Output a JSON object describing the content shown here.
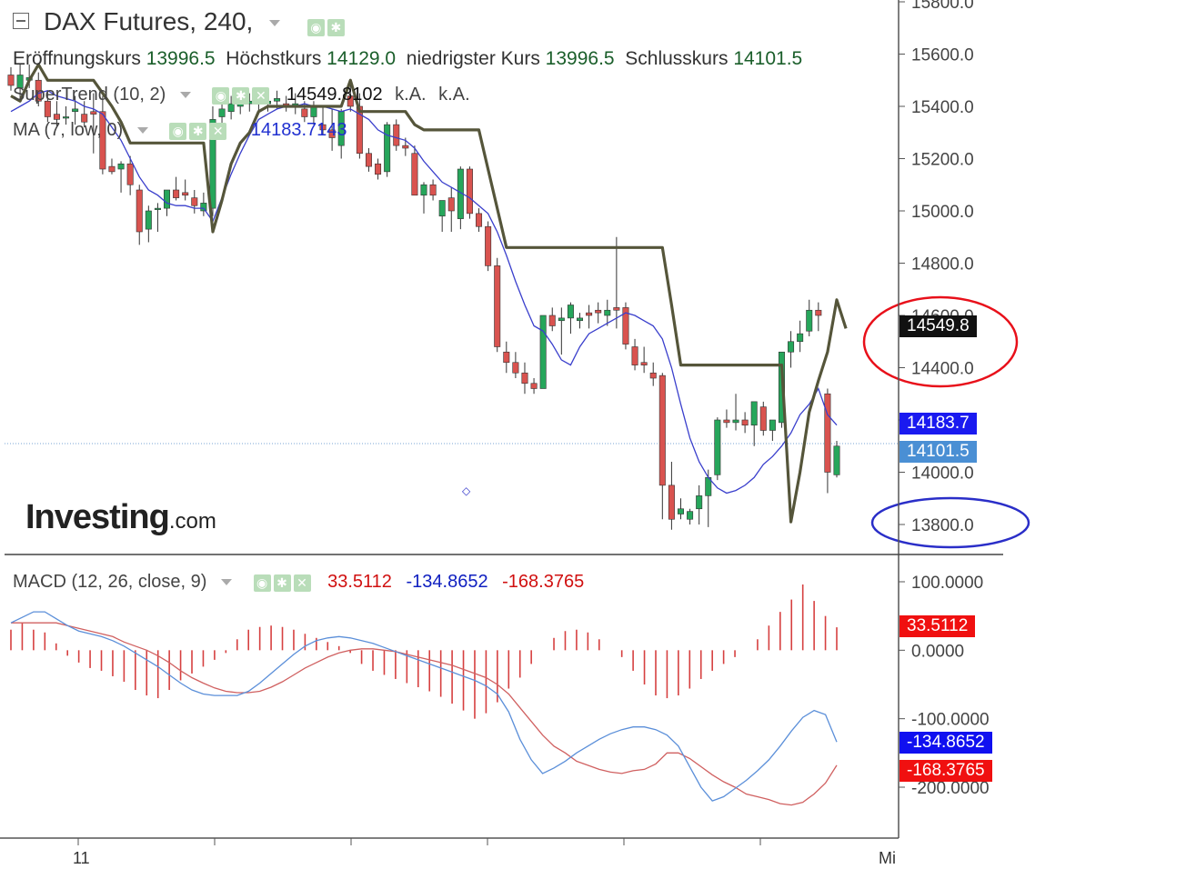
{
  "title": "DAX Futures, 240,",
  "ohlc": {
    "open_label": "Eröffnungskurs",
    "open": "13996.5",
    "high_label": "Höchstkurs",
    "high": "14129.0",
    "low_label": "niedrigster Kurs",
    "low": "13996.5",
    "close_label": "Schlusskurs",
    "close": "14101.5"
  },
  "indicators": {
    "supertrend": {
      "label": "SuperTrend (10, 2)",
      "v1": "14549.8102",
      "v2": "k.A.",
      "v3": "k.A."
    },
    "ma": {
      "label": "MA (7, low, 0)",
      "v1": "14183.7143"
    },
    "macd": {
      "label": "MACD (12, 26, close, 9)",
      "hist": "33.5112",
      "macd": "-134.8652",
      "signal": "-168.3765"
    }
  },
  "logo": {
    "brand": "Investing",
    "suffix": ".com"
  },
  "colors": {
    "up": "#26a65b",
    "down": "#d9534f",
    "supertrend": "#55553a",
    "ma": "#3a3fcc",
    "macd_line": "#5b8fd9",
    "signal_line": "#d06060",
    "hist": "#d64040",
    "circle_red": "#e8101a",
    "circle_blue": "#2a2ec8"
  },
  "chart_data": [
    {
      "type": "candlestick",
      "price_axis": {
        "ticks": [
          "15800.0",
          "15600.0",
          "15400.0",
          "15200.0",
          "15000.0",
          "14800.0",
          "14600.0",
          "14400.0",
          "14200.0",
          "14000.0",
          "13800.0"
        ],
        "range": [
          13800,
          15800
        ]
      },
      "x_ticks": [
        "11",
        "Mi"
      ],
      "price_tags": {
        "supertrend": "14549.8",
        "ma": "14183.7",
        "last": "14101.5"
      },
      "candles": [
        [
          15520,
          15550,
          15460,
          15480
        ],
        [
          15470,
          15560,
          15430,
          15520
        ],
        [
          15500,
          15560,
          15470,
          15510
        ],
        [
          15500,
          15530,
          15400,
          15420
        ],
        [
          15420,
          15460,
          15340,
          15360
        ],
        [
          15370,
          15420,
          15320,
          15350
        ],
        [
          15360,
          15400,
          15330,
          15360
        ],
        [
          15380,
          15440,
          15330,
          15390
        ],
        [
          15370,
          15420,
          15320,
          15340
        ],
        [
          15380,
          15450,
          15220,
          15370
        ],
        [
          15380,
          15440,
          15140,
          15160
        ],
        [
          15170,
          15200,
          15140,
          15150
        ],
        [
          15160,
          15190,
          15070,
          15180
        ],
        [
          15180,
          15210,
          15060,
          15100
        ],
        [
          15080,
          15100,
          14870,
          14920
        ],
        [
          14930,
          15020,
          14880,
          15000
        ],
        [
          15010,
          15030,
          14920,
          15010
        ],
        [
          15010,
          15080,
          14980,
          15080
        ],
        [
          15080,
          15130,
          15040,
          15050
        ],
        [
          15070,
          15120,
          15040,
          15060
        ],
        [
          15050,
          15080,
          14990,
          15020
        ],
        [
          15000,
          15070,
          14980,
          15030
        ],
        [
          15010,
          15400,
          14980,
          15350
        ],
        [
          15360,
          15420,
          15310,
          15390
        ],
        [
          15380,
          15440,
          15350,
          15410
        ],
        [
          15400,
          15450,
          15370,
          15420
        ],
        [
          15410,
          15450,
          15380,
          15420
        ],
        [
          15410,
          15450,
          15380,
          15430
        ],
        [
          15410,
          15440,
          15380,
          15420
        ],
        [
          15420,
          15460,
          15390,
          15430
        ],
        [
          15410,
          15440,
          15380,
          15400
        ],
        [
          15400,
          15450,
          15370,
          15410
        ],
        [
          15390,
          15420,
          15340,
          15360
        ],
        [
          15360,
          15420,
          15330,
          15400
        ],
        [
          15330,
          15400,
          15290,
          15310
        ],
        [
          15310,
          15390,
          15230,
          15280
        ],
        [
          15250,
          15390,
          15200,
          15380
        ],
        [
          15440,
          15480,
          15380,
          15400
        ],
        [
          15400,
          15450,
          15200,
          15220
        ],
        [
          15220,
          15240,
          15150,
          15170
        ],
        [
          15180,
          15200,
          15120,
          15140
        ],
        [
          15150,
          15340,
          15130,
          15330
        ],
        [
          15330,
          15350,
          15230,
          15250
        ],
        [
          15250,
          15280,
          15210,
          15240
        ],
        [
          15220,
          15250,
          15060,
          15060
        ],
        [
          15060,
          15110,
          14990,
          15100
        ],
        [
          15100,
          15120,
          15040,
          15060
        ],
        [
          14980,
          15040,
          14920,
          15040
        ],
        [
          15050,
          15090,
          14920,
          15000
        ],
        [
          14970,
          15170,
          14930,
          15160
        ],
        [
          15160,
          15170,
          14970,
          14990
        ],
        [
          14990,
          15010,
          14920,
          14940
        ],
        [
          14940,
          14960,
          14770,
          14790
        ],
        [
          14790,
          14820,
          14460,
          14480
        ],
        [
          14460,
          14500,
          14380,
          14420
        ],
        [
          14420,
          14460,
          14360,
          14380
        ],
        [
          14380,
          14420,
          14300,
          14340
        ],
        [
          14340,
          14360,
          14300,
          14320
        ],
        [
          14320,
          14600,
          14320,
          14600
        ],
        [
          14600,
          14630,
          14540,
          14560
        ],
        [
          14580,
          14630,
          14450,
          14590
        ],
        [
          14590,
          14650,
          14530,
          14640
        ],
        [
          14580,
          14610,
          14550,
          14590
        ],
        [
          14610,
          14640,
          14550,
          14600
        ],
        [
          14620,
          14650,
          14570,
          14610
        ],
        [
          14600,
          14660,
          14560,
          14620
        ],
        [
          14630,
          14900,
          14550,
          14620
        ],
        [
          14630,
          14650,
          14470,
          14490
        ],
        [
          14480,
          14510,
          14390,
          14410
        ],
        [
          14420,
          14480,
          14380,
          14410
        ],
        [
          14380,
          14420,
          14330,
          14360
        ],
        [
          14370,
          14380,
          13820,
          13950
        ],
        [
          13950,
          14040,
          13780,
          13820
        ],
        [
          13840,
          13900,
          13820,
          13860
        ],
        [
          13820,
          13860,
          13800,
          13850
        ],
        [
          13860,
          13950,
          13800,
          13910
        ],
        [
          13910,
          14010,
          13790,
          13980
        ],
        [
          13990,
          14210,
          13970,
          14200
        ],
        [
          14200,
          14240,
          14170,
          14190
        ],
        [
          14190,
          14300,
          14160,
          14200
        ],
        [
          14200,
          14230,
          14150,
          14180
        ],
        [
          14180,
          14260,
          14100,
          14270
        ],
        [
          14250,
          14270,
          14140,
          14160
        ],
        [
          14160,
          14190,
          14120,
          14200
        ],
        [
          14190,
          14460,
          14170,
          14460
        ],
        [
          14460,
          14540,
          14400,
          14500
        ],
        [
          14500,
          14580,
          14460,
          14530
        ],
        [
          14540,
          14660,
          14520,
          14620
        ],
        [
          14620,
          14650,
          14540,
          14600
        ],
        [
          14300,
          14320,
          13920,
          14000
        ],
        [
          13990,
          14120,
          13980,
          14100
        ]
      ],
      "supertrend": [
        15440,
        15420,
        15500,
        15560,
        15500,
        15500,
        15500,
        15500,
        15500,
        15500,
        15450,
        15400,
        15340,
        15260,
        15260,
        15260,
        15260,
        15260,
        15260,
        15260,
        15260,
        15260,
        14920,
        15040,
        15180,
        15260,
        15300,
        15380,
        15400,
        15400,
        15400,
        15400,
        15400,
        15400,
        15400,
        15400,
        15400,
        15500,
        15380,
        15380,
        15380,
        15380,
        15380,
        15380,
        15330,
        15310,
        15310,
        15310,
        15310,
        15310,
        15310,
        15310,
        15160,
        15010,
        14860,
        14860,
        14860,
        14860,
        14860,
        14860,
        14860,
        14860,
        14860,
        14860,
        14860,
        14860,
        14860,
        14860,
        14860,
        14860,
        14860,
        14860,
        14640,
        14410,
        14410,
        14410,
        14410,
        14410,
        14410,
        14410,
        14410,
        14410,
        14410,
        14410,
        14410,
        13810,
        14000,
        14230,
        14350,
        14460,
        14660,
        14550
      ],
      "ma": [
        15380,
        15400,
        15420,
        15450,
        15460,
        15440,
        15430,
        15420,
        15400,
        15390,
        15370,
        15320,
        15270,
        15200,
        15130,
        15080,
        15060,
        15030,
        15020,
        15020,
        15010,
        15010,
        14960,
        15050,
        15140,
        15220,
        15290,
        15350,
        15370,
        15390,
        15400,
        15400,
        15410,
        15400,
        15400,
        15390,
        15380,
        15390,
        15370,
        15350,
        15310,
        15290,
        15280,
        15270,
        15240,
        15190,
        15150,
        15110,
        15090,
        15070,
        15050,
        15020,
        14990,
        14920,
        14830,
        14730,
        14640,
        14560,
        14540,
        14490,
        14430,
        14410,
        14480,
        14530,
        14550,
        14570,
        14590,
        14610,
        14600,
        14580,
        14560,
        14510,
        14400,
        14260,
        14130,
        14040,
        13980,
        13940,
        13920,
        13930,
        13950,
        13980,
        14030,
        14060,
        14100,
        14150,
        14220,
        14260,
        14320,
        14220,
        14180
      ]
    },
    {
      "type": "macd",
      "y_axis": {
        "ticks": [
          "100.0000",
          "0.0000",
          "-100.0000",
          "-200.0000"
        ],
        "range": [
          -250,
          120
        ]
      },
      "macd": [
        40,
        48,
        56,
        56,
        46,
        36,
        28,
        24,
        20,
        14,
        6,
        -4,
        -14,
        -24,
        -36,
        -48,
        -58,
        -64,
        -66,
        -66,
        -66,
        -60,
        -48,
        -34,
        -20,
        -6,
        6,
        14,
        18,
        20,
        18,
        14,
        10,
        4,
        -2,
        -8,
        -14,
        -20,
        -26,
        -32,
        -38,
        -44,
        -52,
        -64,
        -90,
        -130,
        -160,
        -180,
        -172,
        -162,
        -150,
        -140,
        -130,
        -122,
        -116,
        -112,
        -112,
        -116,
        -124,
        -140,
        -170,
        -200,
        -220,
        -214,
        -202,
        -190,
        -176,
        -160,
        -140,
        -118,
        -98,
        -88,
        -94,
        -134
      ],
      "signal": [
        40,
        40,
        40,
        40,
        40,
        36,
        32,
        28,
        24,
        20,
        12,
        6,
        0,
        -8,
        -18,
        -30,
        -40,
        -48,
        -55,
        -60,
        -62,
        -62,
        -60,
        -54,
        -46,
        -36,
        -26,
        -18,
        -10,
        -4,
        0,
        2,
        2,
        0,
        -2,
        -6,
        -10,
        -14,
        -18,
        -22,
        -28,
        -34,
        -40,
        -50,
        -64,
        -84,
        -104,
        -124,
        -140,
        -150,
        -162,
        -168,
        -174,
        -178,
        -180,
        -176,
        -174,
        -166,
        -150,
        -150,
        -158,
        -170,
        -182,
        -192,
        -200,
        -210,
        -214,
        -218,
        -224,
        -226,
        -222,
        -210,
        -194,
        -168
      ],
      "histogram": [
        30,
        40,
        30,
        26,
        10,
        -8,
        -18,
        -26,
        -30,
        -38,
        -46,
        -58,
        -66,
        -70,
        -58,
        -44,
        -34,
        -24,
        -14,
        -4,
        16,
        30,
        34,
        36,
        34,
        30,
        24,
        18,
        12,
        6,
        -4,
        -20,
        -30,
        -36,
        -42,
        -48,
        -54,
        -60,
        -68,
        -78,
        -88,
        -100,
        -92,
        -76,
        -56,
        -40,
        -20,
        0,
        18,
        28,
        30,
        26,
        16,
        0,
        -10,
        -30,
        -50,
        -66,
        -70,
        -66,
        -56,
        -42,
        -30,
        -20,
        -10,
        0,
        16,
        36,
        56,
        74,
        96,
        72,
        50,
        33.5
      ]
    }
  ]
}
